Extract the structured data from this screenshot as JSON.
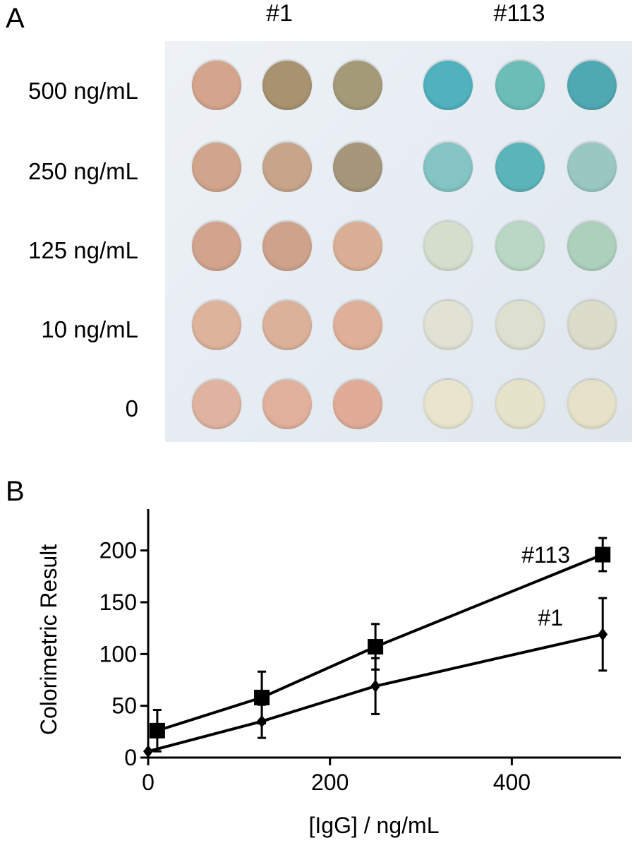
{
  "panel_a": {
    "label": "A",
    "column_groups": [
      "#1",
      "#113"
    ],
    "row_labels": [
      "500 ng/mL",
      "250 ng/mL",
      "125 ng/mL",
      "10 ng/mL",
      "0"
    ],
    "well_colors": [
      [
        "#d4a48c",
        "#a89270",
        "#a49a78",
        "#4fb2bd",
        "#6cbdb8",
        "#4fa9b3"
      ],
      [
        "#d0a58c",
        "#c7a58a",
        "#a6977a",
        "#84c4c4",
        "#5cb4bb",
        "#98c8c1"
      ],
      [
        "#d2a48e",
        "#cfa28b",
        "#daaf95",
        "#d5decd",
        "#b9d7c5",
        "#acd0bb"
      ],
      [
        "#ddb39c",
        "#dcb199",
        "#dfb097",
        "#e1e2d3",
        "#dddfcf",
        "#dcdccb"
      ],
      [
        "#e0b3a0",
        "#e1b09c",
        "#e0ac97",
        "#e8e4cd",
        "#e6e3cb",
        "#e6e2c9"
      ]
    ]
  },
  "chart_data": {
    "type": "line",
    "panel_label": "B",
    "xlabel": "[IgG]  / ng/mL",
    "ylabel": "Colorimetric Result",
    "xlim": [
      0,
      520
    ],
    "ylim": [
      0,
      240
    ],
    "xticks": [
      0,
      200,
      400
    ],
    "yticks": [
      0,
      50,
      100,
      150,
      200
    ],
    "grid": false,
    "series": [
      {
        "name": "#113",
        "marker": "square",
        "x": [
          10,
          125,
          250,
          500
        ],
        "y": [
          26,
          58,
          107,
          196
        ],
        "err": [
          20,
          25,
          22,
          16
        ]
      },
      {
        "name": "#1",
        "marker": "diamond",
        "x": [
          0,
          125,
          250,
          500
        ],
        "y": [
          6,
          35,
          69,
          119
        ],
        "err": [
          0,
          16,
          27,
          35
        ]
      }
    ]
  }
}
